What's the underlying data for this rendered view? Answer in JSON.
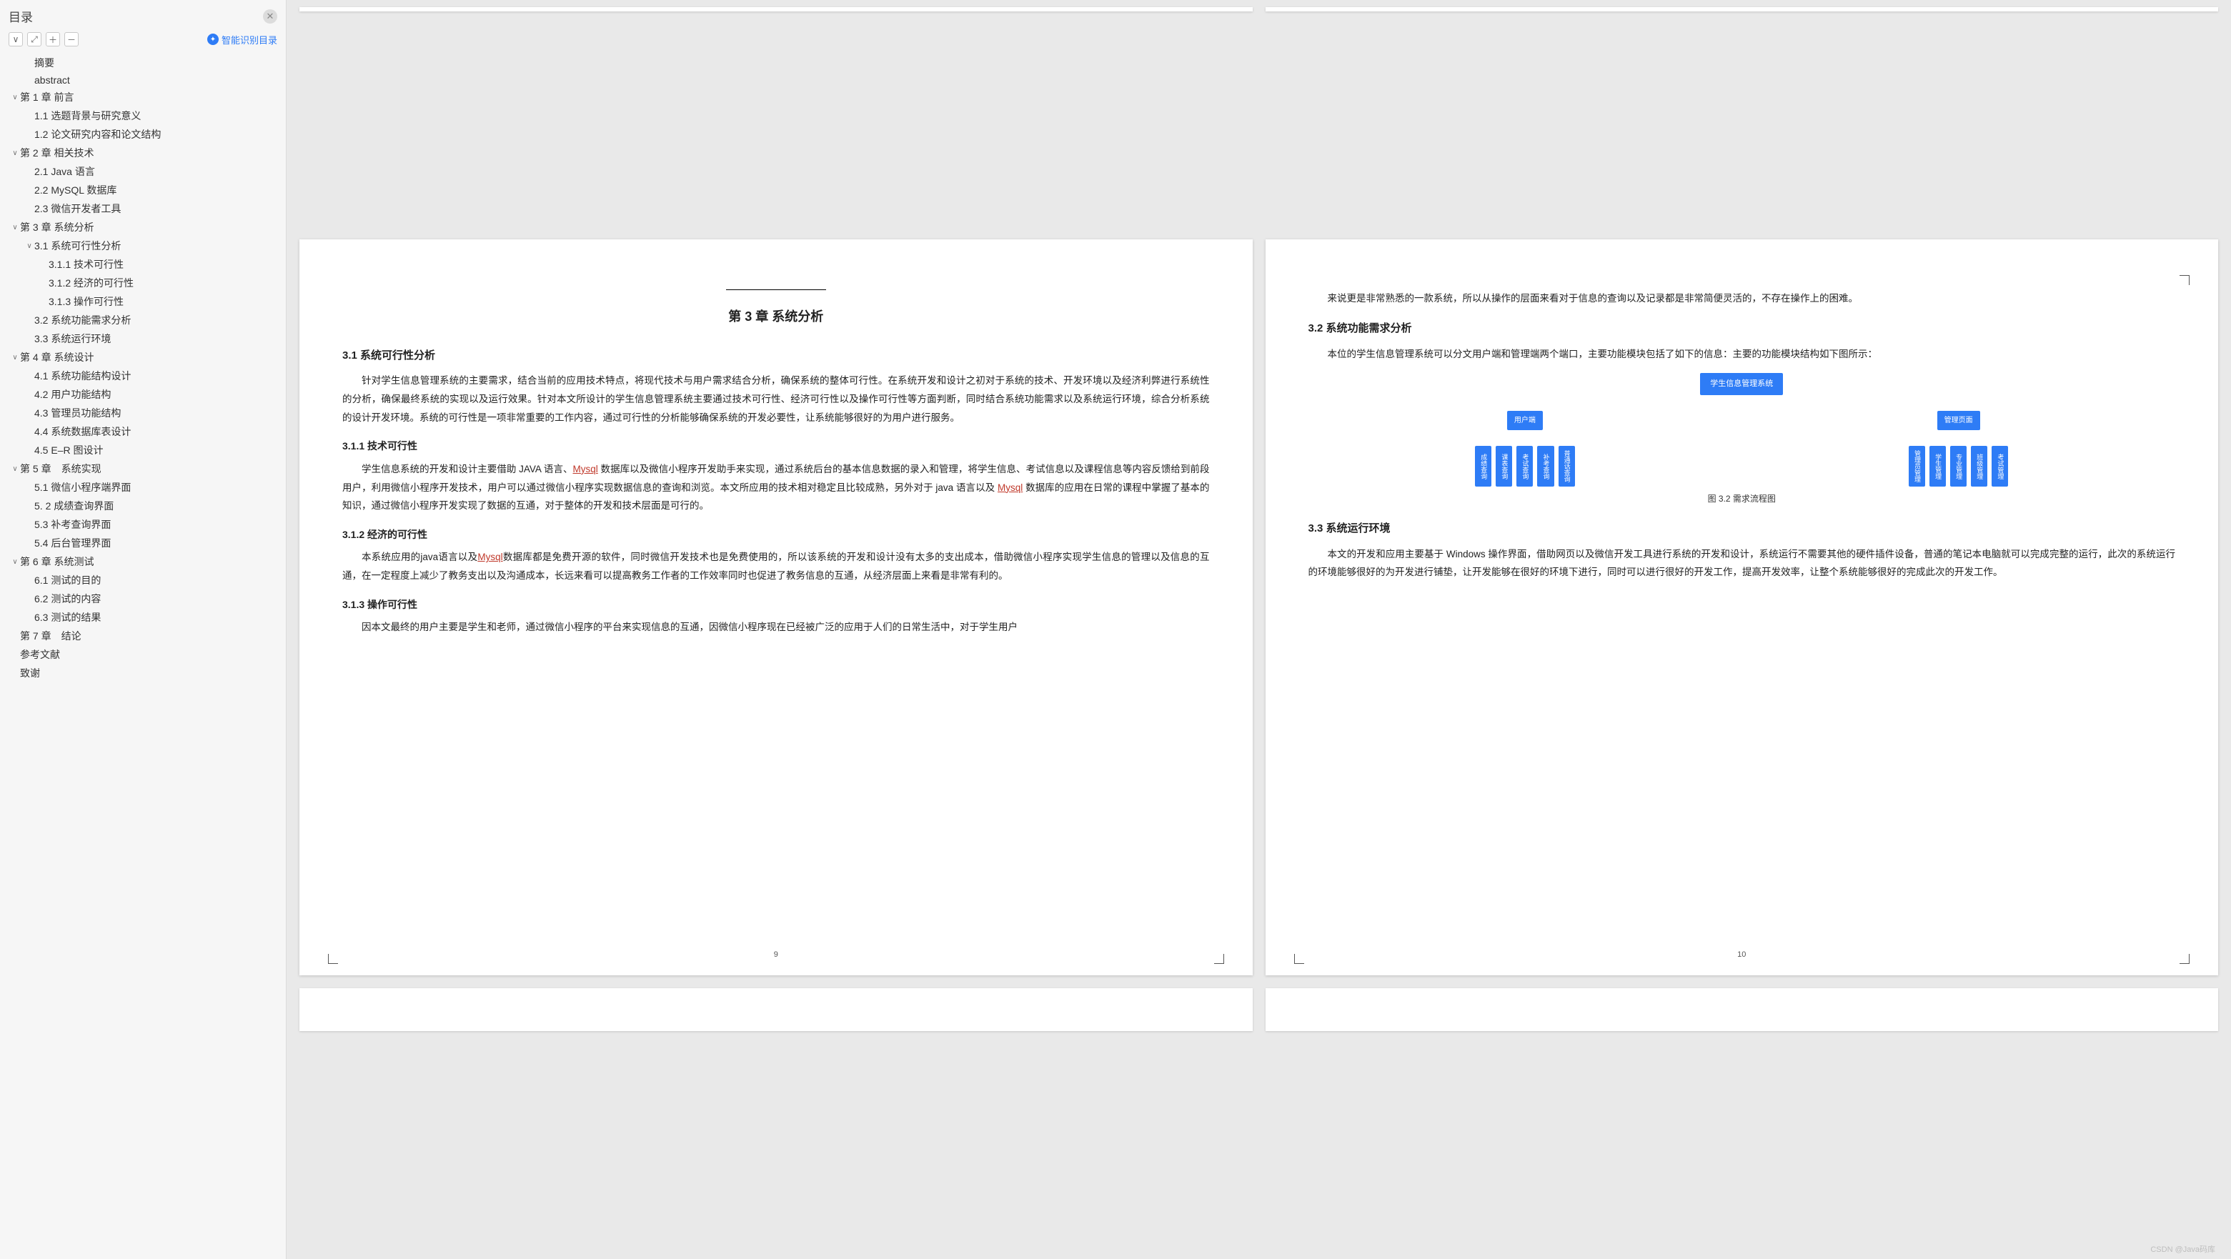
{
  "sidebar": {
    "title": "目录",
    "smart_link": "智能识别目录",
    "toolbar": {
      "collapse_tip": "∨",
      "img_tip": "⤢",
      "add_tip": "＋",
      "remove_tip": "－"
    }
  },
  "toc": [
    {
      "lvl": 1,
      "caret": "",
      "label": "摘要"
    },
    {
      "lvl": 1,
      "caret": "",
      "label": "abstract"
    },
    {
      "lvl": 0,
      "caret": "∨",
      "label": "第 1 章 前言"
    },
    {
      "lvl": 1,
      "caret": "",
      "label": "1.1 选题背景与研究意义"
    },
    {
      "lvl": 1,
      "caret": "",
      "label": "1.2 论文研究内容和论文结构"
    },
    {
      "lvl": 0,
      "caret": "∨",
      "label": "第 2 章 相关技术"
    },
    {
      "lvl": 1,
      "caret": "",
      "label": "2.1 Java 语言"
    },
    {
      "lvl": 1,
      "caret": "",
      "label": "2.2 MySQL 数据库"
    },
    {
      "lvl": 1,
      "caret": "",
      "label": "2.3 微信开发者工具"
    },
    {
      "lvl": 0,
      "caret": "∨",
      "label": "第 3 章 系统分析"
    },
    {
      "lvl": 1,
      "caret": "∨",
      "label": "3.1 系统可行性分析"
    },
    {
      "lvl": 2,
      "caret": "",
      "label": "3.1.1 技术可行性"
    },
    {
      "lvl": 2,
      "caret": "",
      "label": "3.1.2 经济的可行性"
    },
    {
      "lvl": 2,
      "caret": "",
      "label": "3.1.3 操作可行性"
    },
    {
      "lvl": 1,
      "caret": "",
      "label": "3.2 系统功能需求分析"
    },
    {
      "lvl": 1,
      "caret": "",
      "label": "3.3 系统运行环境"
    },
    {
      "lvl": 0,
      "caret": "∨",
      "label": "第 4 章 系统设计"
    },
    {
      "lvl": 1,
      "caret": "",
      "label": "4.1 系统功能结构设计"
    },
    {
      "lvl": 1,
      "caret": "",
      "label": "4.2 用户功能结构"
    },
    {
      "lvl": 1,
      "caret": "",
      "label": "4.3 管理员功能结构"
    },
    {
      "lvl": 1,
      "caret": "",
      "label": "4.4 系统数据库表设计"
    },
    {
      "lvl": 1,
      "caret": "",
      "label": "4.5 E–R 图设计"
    },
    {
      "lvl": 0,
      "caret": "∨",
      "label": "第 5 章　系统实现"
    },
    {
      "lvl": 1,
      "caret": "",
      "label": "5.1 微信小程序端界面"
    },
    {
      "lvl": 1,
      "caret": "",
      "label": "5. 2 成绩查询界面"
    },
    {
      "lvl": 1,
      "caret": "",
      "label": "5.3 补考查询界面"
    },
    {
      "lvl": 1,
      "caret": "",
      "label": "5.4 后台管理界面"
    },
    {
      "lvl": 0,
      "caret": "∨",
      "label": "第 6 章 系统测试"
    },
    {
      "lvl": 1,
      "caret": "",
      "label": "6.1 测试的目的"
    },
    {
      "lvl": 1,
      "caret": "",
      "label": "6.2 测试的内容"
    },
    {
      "lvl": 1,
      "caret": "",
      "label": "6.3 测试的结果"
    },
    {
      "lvl": 0,
      "caret": "",
      "label": "第 7 章　结论"
    },
    {
      "lvl": 0,
      "caret": "",
      "label": "参考文献"
    },
    {
      "lvl": 0,
      "caret": "",
      "label": "致谢"
    }
  ],
  "pageL": {
    "num": "9",
    "chapter": "第 3 章  系统分析",
    "s31": "3.1  系统可行性分析",
    "p31": "针对学生信息管理系统的主要需求，结合当前的应用技术特点，将现代技术与用户需求结合分析，确保系统的整体可行性。在系统开发和设计之初对于系统的技术、开发环境以及经济利弊进行系统性的分析，确保最终系统的实现以及运行效果。针对本文所设计的学生信息管理系统主要通过技术可行性、经济可行性以及操作可行性等方面判断，同时结合系统功能需求以及系统运行环境，综合分析系统的设计开发环境。系统的可行性是一项非常重要的工作内容，通过可行性的分析能够确保系统的开发必要性，让系统能够很好的为用户进行服务。",
    "s311": "3.1.1  技术可行性",
    "p311a": "学生信息系统的开发和设计主要借助 JAVA 语言、",
    "p311b": " 数据库以及微信小程序开发助手来实现，通过系统后台的基本信息数据的录入和管理，将学生信息、考试信息以及课程信息等内容反馈给到前段用户，利用微信小程序开发技术，用户可以通过微信小程序实现数据信息的查询和浏览。本文所应用的技术相对稳定且比较成熟，另外对于 java 语言以及 ",
    "p311c": " 数据库的应用在日常的课程中掌握了基本的知识，通过微信小程序开发实现了数据的互通，对于整体的开发和技术层面是可行的。",
    "hl_mysql1": "Mysql",
    "hl_mysql2": "Mysql",
    "s312": "3.1.2 经济的可行性",
    "p312a": "本系统应用的java语言以及",
    "hl_mysql3": "Mysql",
    "p312b": "数据库都是免费开源的软件，同时微信开发技术也是免费使用的，所以该系统的开发和设计没有太多的支出成本，借助微信小程序实现学生信息的管理以及信息的互通，在一定程度上减少了教务支出以及沟通成本，长远来看可以提高教务工作者的工作效率同时也促进了教务信息的互通，从经济层面上来看是非常有利的。",
    "s313": "3.1.3 操作可行性",
    "p313": "因本文最终的用户主要是学生和老师，通过微信小程序的平台来实现信息的互通，因微信小程序现在已经被广泛的应用于人们的日常生活中，对于学生用户"
  },
  "pageR": {
    "num": "10",
    "p_cont": "来说更是非常熟悉的一款系统，所以从操作的层面来看对于信息的查询以及记录都是非常简便灵活的，不存在操作上的困难。",
    "s32": "3.2 系统功能需求分析",
    "p32": "本位的学生信息管理系统可以分文用户端和管理端两个端口，主要功能模块包括了如下的信息：主要的功能模块结构如下图所示：",
    "fig_caption": "图 3.2 需求流程图",
    "s33": "3.3  系统运行环境",
    "p33": "本文的开发和应用主要基于 Windows 操作界面，借助网页以及微信开发工具进行系统的开发和设计，系统运行不需要其他的硬件插件设备，普通的笔记本电脑就可以完成完整的运行，此次的系统运行的环境能够很好的为开发进行铺垫，让开发能够在很好的环境下进行，同时可以进行很好的开发工作，提高开发效率，让整个系统能够很好的完成此次的开发工作。",
    "diagram": {
      "root": "学生信息管理系统",
      "branches": [
        {
          "name": "用户端",
          "leaves": [
            "成绩查询",
            "课表查询",
            "考试查询",
            "补考查询",
            "普通话查询"
          ]
        },
        {
          "name": "管理页面",
          "leaves": [
            "管理员管理",
            "学生管理",
            "专业管理",
            "班级管理",
            "考试管理"
          ]
        }
      ],
      "colors": {
        "node": "#2e7cf6",
        "line": "#6aa6f8",
        "text": "#ffffff"
      }
    }
  },
  "watermark": "CSDN @Java码库"
}
